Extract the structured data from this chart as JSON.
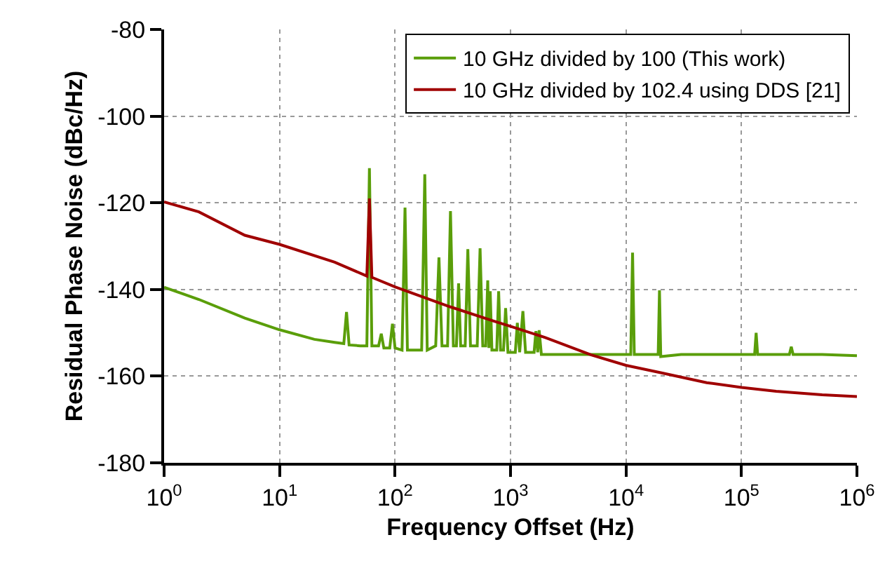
{
  "chart_data": {
    "type": "line",
    "xlabel": "Frequency Offset (Hz)",
    "ylabel": "Residual Phase Noise (dBc/Hz)",
    "log": "x",
    "grid": true,
    "legend": "top right",
    "line_style": "solid",
    "marker": "none",
    "xlim": [
      1,
      1000000
    ],
    "ylim": [
      -180,
      -80
    ],
    "xticks": [
      {
        "value": 1,
        "label": "10$^{0}$"
      },
      {
        "value": 10,
        "label": "10$^{1}$"
      },
      {
        "value": 100,
        "label": "10$^{2}$"
      },
      {
        "value": 1000,
        "label": "10$^{3}$"
      },
      {
        "value": 10000,
        "label": "10$^{4}$"
      },
      {
        "value": 100000,
        "label": "10$^{5}$"
      },
      {
        "value": 1000000,
        "label": "10$^{6}$"
      }
    ],
    "yticks": [
      -180,
      -160,
      -140,
      -120,
      -100,
      -80
    ],
    "series": [
      {
        "name": "10 GHz divided by 100 (This work)",
        "color": "#5a9e0a",
        "x": [
          1,
          2,
          5,
          10,
          20,
          30,
          36,
          38,
          40,
          50,
          57,
          60,
          63,
          72,
          76,
          80,
          90,
          95,
          100,
          115,
          122,
          128,
          170,
          181,
          190,
          225,
          240,
          255,
          285,
          302,
          320,
          340,
          355,
          370,
          405,
          427,
          450,
          515,
          545,
          575,
          610,
          635,
          650,
          667,
          690,
          760,
          789,
          820,
          870,
          907,
          950,
          1100,
          1146,
          1200,
          1280,
          1350,
          1600,
          1660,
          1720,
          1770,
          1850,
          2000,
          5000,
          10000,
          11000,
          11400,
          11800,
          15000,
          19000,
          19500,
          20000,
          30000,
          100000,
          130000,
          134000,
          138000,
          200000,
          260000,
          270000,
          280000,
          500000,
          1000000
        ],
        "values": [
          -139.5,
          -142.3,
          -146.6,
          -149.3,
          -151.5,
          -152.2,
          -152.5,
          -145.2,
          -152.8,
          -153,
          -153,
          -112,
          -153,
          -153,
          -150.2,
          -153.5,
          -153.5,
          -147.9,
          -153.5,
          -154,
          -121.1,
          -154,
          -154,
          -113.4,
          -154,
          -153,
          -132.6,
          -153,
          -153,
          -121.9,
          -153,
          -153,
          -138.6,
          -153,
          -153,
          -130.7,
          -153,
          -153,
          -130.5,
          -153,
          -153,
          -137.9,
          -153.5,
          -140.4,
          -154,
          -154,
          -140.4,
          -154,
          -154,
          -144.3,
          -154.5,
          -154.5,
          -147.7,
          -154.5,
          -145,
          -154.5,
          -154.5,
          -149.6,
          -154.5,
          -149.4,
          -155,
          -155,
          -155,
          -155,
          -155,
          -131.5,
          -155,
          -155,
          -155,
          -140.2,
          -155.5,
          -155,
          -155,
          -155,
          -150,
          -155,
          -155,
          -155,
          -153.2,
          -155,
          -155,
          -155.3
        ]
      },
      {
        "name": "10 GHz divided by 102.4 using DDS [21]",
        "color": "#a00000",
        "x": [
          1,
          2,
          5,
          10,
          30,
          57,
          60,
          63,
          100,
          300,
          700,
          1000,
          2000,
          5000,
          10000,
          20000,
          50000,
          100000,
          200000,
          500000,
          1000000
        ],
        "values": [
          -119.8,
          -122.1,
          -127.5,
          -129.6,
          -133.7,
          -136.9,
          -119,
          -137.2,
          -139.4,
          -144,
          -147.2,
          -148.5,
          -151.1,
          -155.1,
          -157.5,
          -159.2,
          -161.5,
          -162.6,
          -163.5,
          -164.3,
          -164.7
        ]
      }
    ]
  }
}
